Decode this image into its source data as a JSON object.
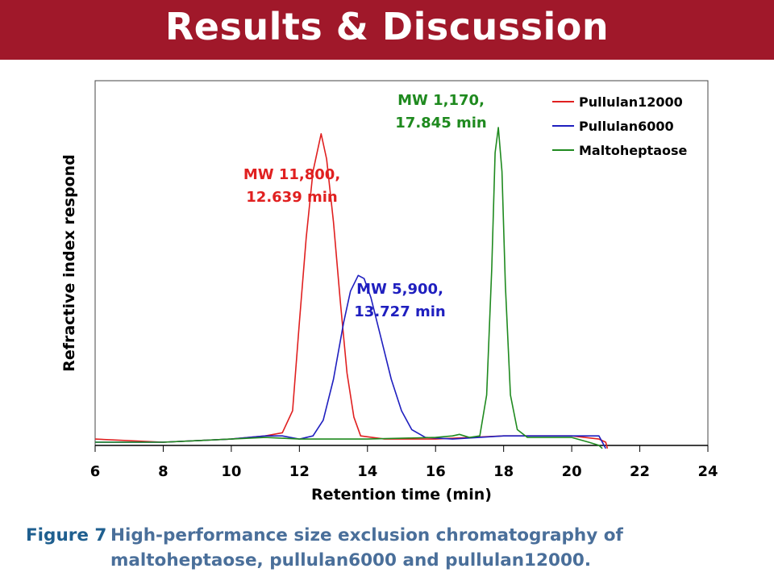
{
  "slide": {
    "title": "Results & Discussion",
    "caption_label": "Figure 7",
    "caption_text": "High-performance size exclusion chromatography of maltoheptaose, pullulan6000 and pullulan12000."
  },
  "colors": {
    "banner": "#a0182a",
    "pullulan12000": "#e02020",
    "pullulan6000": "#1f1fbf",
    "maltoheptaose": "#1f8a1f"
  },
  "chart_data": {
    "type": "line",
    "xlabel": "Retention time (min)",
    "ylabel": "Refractive index respond",
    "xlim": [
      6,
      24
    ],
    "x_ticks": [
      6,
      8,
      10,
      12,
      14,
      16,
      18,
      20,
      22,
      24
    ],
    "y_ticks_shown": false,
    "grid": false,
    "legend_position": "top-right",
    "series": [
      {
        "name": "Pullulan12000",
        "color": "#e02020",
        "peak_time": 12.639,
        "points": [
          [
            6.0,
            0.01
          ],
          [
            8.0,
            0.0
          ],
          [
            10.0,
            0.01
          ],
          [
            11.0,
            0.02
          ],
          [
            11.5,
            0.03
          ],
          [
            11.8,
            0.1
          ],
          [
            12.0,
            0.38
          ],
          [
            12.2,
            0.65
          ],
          [
            12.4,
            0.86
          ],
          [
            12.639,
            0.98
          ],
          [
            12.8,
            0.9
          ],
          [
            13.0,
            0.7
          ],
          [
            13.2,
            0.45
          ],
          [
            13.4,
            0.22
          ],
          [
            13.6,
            0.08
          ],
          [
            13.8,
            0.02
          ],
          [
            14.5,
            0.01
          ],
          [
            16.0,
            0.01
          ],
          [
            18.0,
            0.02
          ],
          [
            20.0,
            0.02
          ],
          [
            20.8,
            0.01
          ],
          [
            21.0,
            0.0
          ],
          [
            21.05,
            -0.02
          ]
        ]
      },
      {
        "name": "Pullulan6000",
        "color": "#1f1fbf",
        "peak_time": 13.727,
        "points": [
          [
            6.0,
            0.0
          ],
          [
            8.0,
            0.0
          ],
          [
            10.0,
            0.01
          ],
          [
            11.0,
            0.02
          ],
          [
            11.5,
            0.02
          ],
          [
            12.0,
            0.01
          ],
          [
            12.4,
            0.02
          ],
          [
            12.7,
            0.07
          ],
          [
            13.0,
            0.2
          ],
          [
            13.3,
            0.38
          ],
          [
            13.5,
            0.48
          ],
          [
            13.727,
            0.53
          ],
          [
            13.9,
            0.52
          ],
          [
            14.1,
            0.46
          ],
          [
            14.4,
            0.33
          ],
          [
            14.7,
            0.2
          ],
          [
            15.0,
            0.1
          ],
          [
            15.3,
            0.04
          ],
          [
            15.7,
            0.015
          ],
          [
            16.5,
            0.01
          ],
          [
            18.0,
            0.02
          ],
          [
            20.0,
            0.02
          ],
          [
            20.8,
            0.02
          ],
          [
            21.0,
            -0.02
          ]
        ]
      },
      {
        "name": "Maltoheptaose",
        "color": "#1f8a1f",
        "peak_time": 17.845,
        "points": [
          [
            6.0,
            0.0
          ],
          [
            8.0,
            0.0
          ],
          [
            10.0,
            0.01
          ],
          [
            11.0,
            0.015
          ],
          [
            12.0,
            0.01
          ],
          [
            14.0,
            0.01
          ],
          [
            16.0,
            0.015
          ],
          [
            16.5,
            0.02
          ],
          [
            16.7,
            0.025
          ],
          [
            17.0,
            0.015
          ],
          [
            17.3,
            0.02
          ],
          [
            17.5,
            0.15
          ],
          [
            17.65,
            0.55
          ],
          [
            17.75,
            0.92
          ],
          [
            17.845,
            1.0
          ],
          [
            17.95,
            0.86
          ],
          [
            18.05,
            0.5
          ],
          [
            18.2,
            0.15
          ],
          [
            18.4,
            0.04
          ],
          [
            18.7,
            0.015
          ],
          [
            20.0,
            0.015
          ],
          [
            20.5,
            0.0
          ],
          [
            20.8,
            -0.01
          ],
          [
            20.9,
            -0.02
          ]
        ]
      }
    ],
    "annotations": [
      {
        "line1": "MW 11,800,",
        "line2": "12.639 min",
        "color": "#e02020"
      },
      {
        "line1": "MW 5,900,",
        "line2": "13.727 min",
        "color": "#1f1fbf"
      },
      {
        "line1": "MW 1,170,",
        "line2": "17.845 min",
        "color": "#1f8a1f"
      }
    ]
  }
}
